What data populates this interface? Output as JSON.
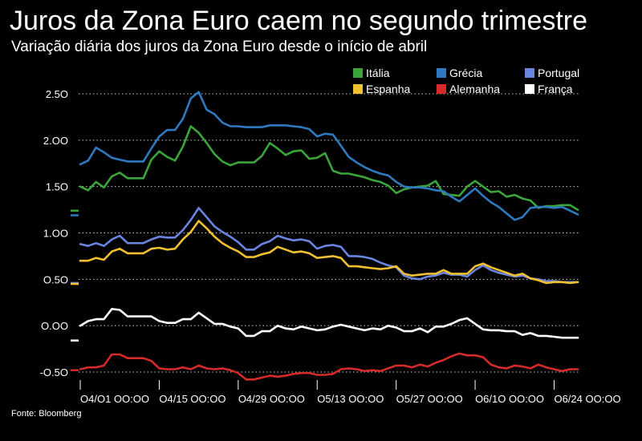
{
  "header": {
    "title": "Juros da Zona Euro caem no segundo trimestre",
    "subtitle": "Variação diária dos juros da Zona Euro desde o início de abril"
  },
  "source": "Fonte: Bloomberg",
  "colors": {
    "background": "#000000",
    "grid": "#cccccc",
    "text": "#ffffff"
  },
  "chart_data": {
    "type": "line",
    "title": "Juros da Zona Euro caem no segundo trimestre",
    "subtitle": "Variação diária dos juros da Zona Euro desde o início de abril",
    "xlabel": "",
    "ylabel": "",
    "ylim": [
      -0.65,
      2.65
    ],
    "yticks": [
      2.5,
      2.0,
      1.5,
      1.0,
      0.5,
      0.0,
      -0.5
    ],
    "ytick_labels": [
      "2.5O",
      "2.OO",
      "1.5O",
      "1.OO",
      "O.5O",
      "O.OO",
      "-O.5O"
    ],
    "x_ticks": [
      "O4/O1 OO:OO",
      "O4/15 OO:OO",
      "O4/29 OO:OO",
      "O5/13 OO:OO",
      "O5/27 OO:OO",
      "O6/1O OO:OO",
      "O6/24 OO:OO"
    ],
    "x_tick_index": [
      0,
      10,
      20,
      30,
      40,
      50,
      60
    ],
    "grid": true,
    "legend_position": "top-right",
    "series": [
      {
        "name": "Itália",
        "color": "#3aa53a",
        "values": [
          1.5,
          1.46,
          1.55,
          1.49,
          1.61,
          1.65,
          1.59,
          1.59,
          1.59,
          1.79,
          1.88,
          1.82,
          1.78,
          1.93,
          2.15,
          2.08,
          1.97,
          1.85,
          1.77,
          1.73,
          1.76,
          1.76,
          1.76,
          1.83,
          1.97,
          1.91,
          1.84,
          1.88,
          1.89,
          1.8,
          1.81,
          1.86,
          1.67,
          1.64,
          1.64,
          1.62,
          1.6,
          1.57,
          1.55,
          1.51,
          1.43,
          1.47,
          1.49,
          1.5,
          1.51,
          1.56,
          1.42,
          1.41,
          1.4,
          1.5,
          1.56,
          1.5,
          1.44,
          1.45,
          1.39,
          1.41,
          1.37,
          1.35,
          1.27,
          1.29,
          1.29,
          1.3,
          1.3,
          1.25
        ],
        "end_value": 1.24
      },
      {
        "name": "Grécia",
        "color": "#2e79bf",
        "values": [
          1.74,
          1.78,
          1.92,
          1.87,
          1.81,
          1.79,
          1.77,
          1.77,
          1.77,
          1.91,
          2.04,
          2.11,
          2.11,
          2.23,
          2.45,
          2.52,
          2.33,
          2.28,
          2.19,
          2.15,
          2.15,
          2.14,
          2.14,
          2.14,
          2.16,
          2.16,
          2.16,
          2.15,
          2.14,
          2.12,
          2.04,
          2.07,
          2.06,
          1.94,
          1.82,
          1.76,
          1.71,
          1.67,
          1.64,
          1.62,
          1.55,
          1.5,
          1.49,
          1.49,
          1.48,
          1.46,
          1.45,
          1.39,
          1.34,
          1.41,
          1.48,
          1.4,
          1.33,
          1.28,
          1.21,
          1.14,
          1.17,
          1.27,
          1.28,
          1.28,
          1.27,
          1.28,
          1.24,
          1.2
        ],
        "end_value": 1.19
      },
      {
        "name": "Portugal",
        "color": "#6a85e0",
        "values": [
          0.88,
          0.86,
          0.89,
          0.86,
          0.93,
          0.97,
          0.89,
          0.89,
          0.89,
          0.93,
          0.96,
          0.95,
          0.95,
          1.03,
          1.14,
          1.27,
          1.17,
          1.07,
          1.01,
          0.96,
          0.9,
          0.82,
          0.82,
          0.88,
          0.91,
          0.97,
          0.94,
          0.92,
          0.93,
          0.91,
          0.83,
          0.86,
          0.87,
          0.85,
          0.75,
          0.75,
          0.74,
          0.72,
          0.68,
          0.65,
          0.63,
          0.54,
          0.51,
          0.5,
          0.53,
          0.54,
          0.57,
          0.55,
          0.55,
          0.53,
          0.6,
          0.65,
          0.6,
          0.57,
          0.55,
          0.53,
          0.54,
          0.51,
          0.5,
          0.48,
          0.48,
          0.47,
          0.47,
          0.47
        ],
        "end_value": 0.46
      },
      {
        "name": "Espanha",
        "color": "#f0c030",
        "values": [
          0.7,
          0.7,
          0.73,
          0.71,
          0.8,
          0.83,
          0.78,
          0.78,
          0.78,
          0.83,
          0.84,
          0.82,
          0.83,
          0.93,
          1.01,
          1.13,
          1.05,
          0.96,
          0.89,
          0.84,
          0.8,
          0.74,
          0.74,
          0.77,
          0.79,
          0.85,
          0.82,
          0.79,
          0.8,
          0.78,
          0.73,
          0.74,
          0.75,
          0.73,
          0.64,
          0.64,
          0.63,
          0.62,
          0.61,
          0.62,
          0.64,
          0.56,
          0.54,
          0.55,
          0.56,
          0.56,
          0.6,
          0.56,
          0.56,
          0.56,
          0.64,
          0.67,
          0.63,
          0.6,
          0.57,
          0.54,
          0.56,
          0.51,
          0.49,
          0.46,
          0.47,
          0.47,
          0.46,
          0.47
        ],
        "end_value": 0.45
      },
      {
        "name": "Alemanha",
        "color": "#d42a2a",
        "values": [
          -0.47,
          -0.45,
          -0.45,
          -0.43,
          -0.31,
          -0.31,
          -0.35,
          -0.35,
          -0.35,
          -0.38,
          -0.46,
          -0.47,
          -0.47,
          -0.45,
          -0.47,
          -0.43,
          -0.46,
          -0.47,
          -0.46,
          -0.48,
          -0.51,
          -0.58,
          -0.58,
          -0.56,
          -0.54,
          -0.55,
          -0.54,
          -0.52,
          -0.51,
          -0.51,
          -0.53,
          -0.53,
          -0.52,
          -0.47,
          -0.46,
          -0.47,
          -0.49,
          -0.48,
          -0.49,
          -0.46,
          -0.43,
          -0.43,
          -0.45,
          -0.42,
          -0.44,
          -0.4,
          -0.37,
          -0.33,
          -0.3,
          -0.32,
          -0.32,
          -0.34,
          -0.42,
          -0.45,
          -0.46,
          -0.43,
          -0.44,
          -0.46,
          -0.42,
          -0.45,
          -0.47,
          -0.49,
          -0.47,
          -0.47
        ],
        "end_value": -0.48
      },
      {
        "name": "França",
        "color": "#ffffff",
        "values": [
          0.0,
          0.05,
          0.07,
          0.07,
          0.18,
          0.17,
          0.1,
          0.1,
          0.1,
          0.1,
          0.05,
          0.03,
          0.03,
          0.07,
          0.07,
          0.14,
          0.08,
          0.02,
          0.02,
          -0.01,
          -0.03,
          -0.11,
          -0.11,
          -0.06,
          -0.06,
          0.0,
          -0.03,
          -0.04,
          -0.01,
          -0.03,
          -0.05,
          -0.04,
          -0.01,
          0.01,
          -0.01,
          -0.03,
          -0.05,
          -0.03,
          -0.04,
          0.0,
          -0.02,
          -0.06,
          -0.06,
          -0.03,
          -0.07,
          -0.01,
          -0.01,
          0.02,
          0.06,
          0.08,
          0.02,
          -0.04,
          -0.05,
          -0.05,
          -0.06,
          -0.06,
          -0.1,
          -0.08,
          -0.11,
          -0.11,
          -0.12,
          -0.13,
          -0.13,
          -0.13
        ],
        "end_value": -0.16
      }
    ]
  }
}
